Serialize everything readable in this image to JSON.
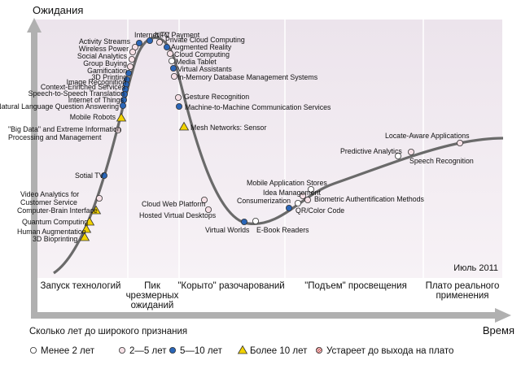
{
  "chart_data": {
    "type": "line",
    "ylabel": "Ожидания",
    "xlabel": "Время",
    "date_label": "Июль 2011",
    "phases": [
      "Запуск технологий",
      "Пик\nчрезмерных\nожиданий",
      "\"Корыто\" разочарований",
      "\"Подъем\" просвещения",
      "Плато реального\nприменения"
    ],
    "legend_title": "Сколько лет до широкого признания",
    "legend": [
      {
        "symbol": "white-circle",
        "label": "Менее 2 лет"
      },
      {
        "symbol": "pink-circle",
        "label": "2—5 лет"
      },
      {
        "symbol": "blue-circle",
        "label": "5—10 лет"
      },
      {
        "symbol": "yellow-triangle",
        "label": "Более 10 лет"
      },
      {
        "symbol": "obsolete-circle",
        "label": "Устареет до выхода на плато"
      }
    ],
    "technologies": [
      {
        "name": "Internet TV",
        "category": "5-10"
      },
      {
        "name": "NFC Payment",
        "category": "5-10"
      },
      {
        "name": "Private Cloud Computing",
        "category": "2-5"
      },
      {
        "name": "Activity Streams",
        "category": "2-5"
      },
      {
        "name": "Augmented Reality",
        "category": "5-10"
      },
      {
        "name": "Wireless Power",
        "category": "2-5"
      },
      {
        "name": "Cloud Computing",
        "category": "2-5"
      },
      {
        "name": "Social Analytics",
        "category": "2-5"
      },
      {
        "name": "Media Tablet",
        "category": "<2"
      },
      {
        "name": "Group Buying",
        "category": "2-5"
      },
      {
        "name": "Virtual Assistants",
        "category": "5-10"
      },
      {
        "name": "Gamification",
        "category": "5-10"
      },
      {
        "name": "In-Memory Database Management Systems",
        "category": "2-5"
      },
      {
        "name": "3D Printing",
        "category": "5-10"
      },
      {
        "name": "Image Recognition",
        "category": "5-10"
      },
      {
        "name": "Context-Enriched Services",
        "category": "5-10"
      },
      {
        "name": "Speech-to-Speech Translation",
        "category": "5-10"
      },
      {
        "name": "Internet of Things",
        "category": "5-10"
      },
      {
        "name": "Natural Language Question Answering",
        "category": "5-10"
      },
      {
        "name": "Gesture Recognition",
        "category": "2-5"
      },
      {
        "name": "Machine-to-Machine Communication Services",
        "category": "5-10"
      },
      {
        "name": "Mobile Robots",
        "category": ">10"
      },
      {
        "name": "Mesh Networks: Sensor",
        "category": ">10"
      },
      {
        "name": "\"Big Data\" and Extreme Information\nProcessing and Management",
        "category": "2-5"
      },
      {
        "name": "Sotial TV",
        "category": "5-10"
      },
      {
        "name": "Video Analytics for\nCustomer Service",
        "category": "2-5"
      },
      {
        "name": "Computer-Brain Interface",
        "category": ">10"
      },
      {
        "name": "Quantum Computing",
        "category": ">10"
      },
      {
        "name": "Human Augmentation",
        "category": ">10"
      },
      {
        "name": "3D Bioprinting",
        "category": ">10"
      },
      {
        "name": "Cloud Web Platform",
        "category": "2-5"
      },
      {
        "name": "Hosted Virtual Desktops",
        "category": "2-5"
      },
      {
        "name": "Virtual Worlds",
        "category": "5-10"
      },
      {
        "name": "E-Book Readers",
        "category": "<2"
      },
      {
        "name": "Consumerization",
        "category": "5-10"
      },
      {
        "name": "Mobile Application Stores",
        "category": "<2"
      },
      {
        "name": "Idea Management",
        "category": "2-5"
      },
      {
        "name": "Biometric Authentification Methods",
        "category": "2-5"
      },
      {
        "name": "QR/Color Code",
        "category": "<2"
      },
      {
        "name": "Predictive Analytics",
        "category": "<2"
      },
      {
        "name": "Speech Recognition",
        "category": "2-5"
      },
      {
        "name": "Locate-Aware Applications",
        "category": "2-5"
      }
    ]
  }
}
